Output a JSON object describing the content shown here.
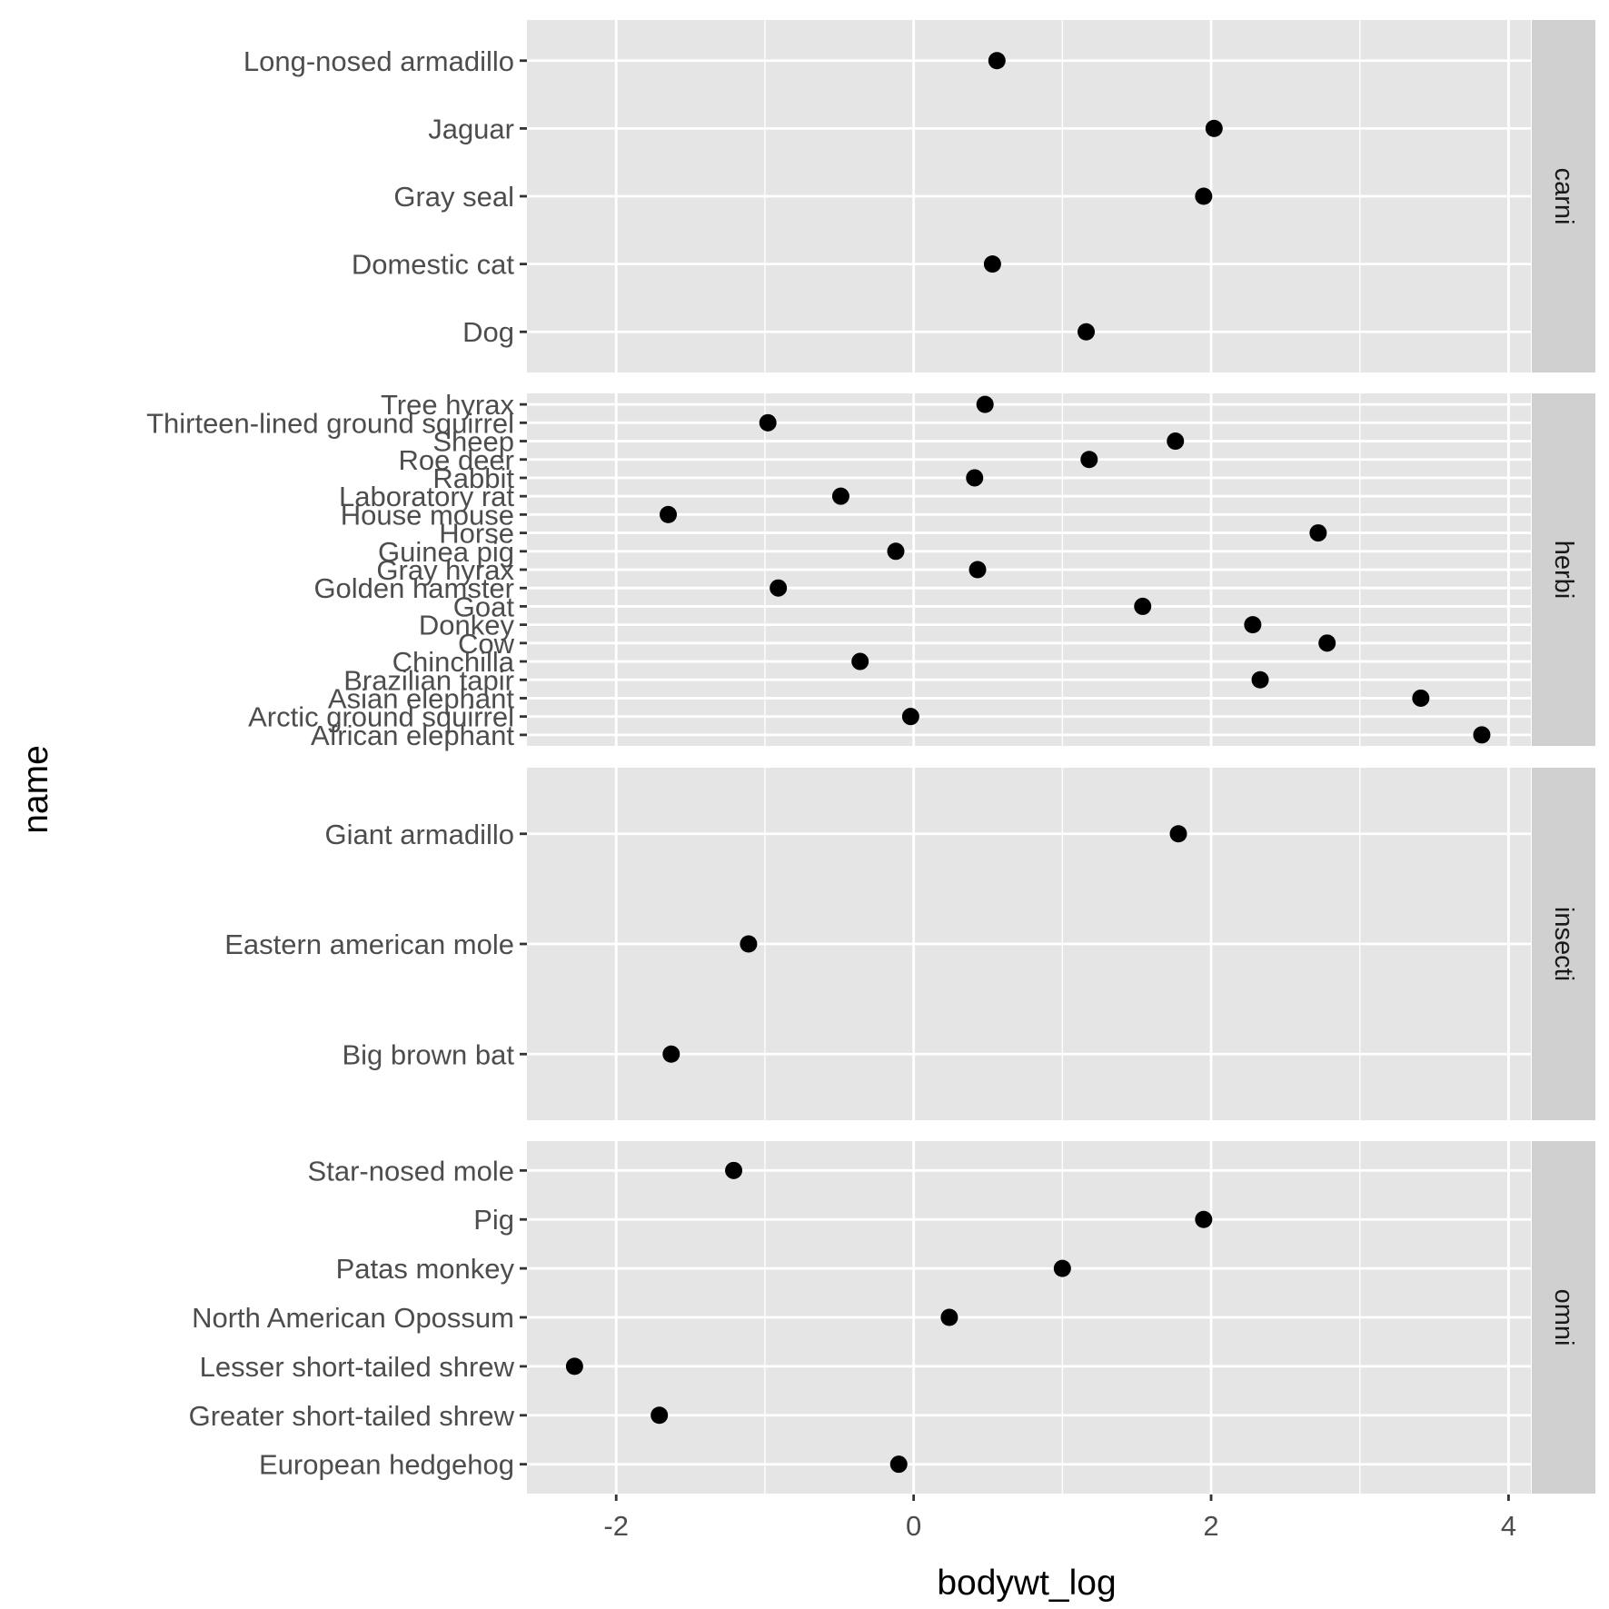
{
  "chart_data": {
    "type": "scatter",
    "facet": "rows",
    "x_label": "bodywt_log",
    "y_label": "name",
    "xlim": [
      -2.6,
      4.15
    ],
    "x_ticks": [
      -2,
      0,
      2,
      4
    ],
    "x_tick_labels": [
      "-2",
      "0",
      "2",
      "4"
    ],
    "grid": true,
    "legend": "none",
    "colors": {
      "panel_bg": "#e5e5e5",
      "strip_bg": "#d0d0d0",
      "grid": "#ffffff",
      "point": "#000000"
    },
    "panels": [
      {
        "strip": "carni",
        "categories": [
          "Dog",
          "Domestic cat",
          "Gray seal",
          "Jaguar",
          "Long-nosed armadillo"
        ],
        "values": [
          1.16,
          0.53,
          1.95,
          2.02,
          0.56
        ]
      },
      {
        "strip": "herbi",
        "categories": [
          "African elephant",
          "Arctic ground squirrel",
          "Asian elephant",
          "Brazilian tapir",
          "Chinchilla",
          "Cow",
          "Donkey",
          "Goat",
          "Golden hamster",
          "Gray hyrax",
          "Guinea pig",
          "Horse",
          "House mouse",
          "Laboratory rat",
          "Rabbit",
          "Roe deer",
          "Sheep",
          "Thirteen-lined ground squirrel",
          "Tree hyrax"
        ],
        "values": [
          3.82,
          -0.02,
          3.41,
          2.33,
          -0.36,
          2.78,
          2.28,
          1.54,
          -0.91,
          0.43,
          -0.12,
          2.72,
          -1.65,
          -0.49,
          0.41,
          1.18,
          1.76,
          -0.98,
          0.48
        ]
      },
      {
        "strip": "insecti",
        "categories": [
          "Big brown bat",
          "Eastern american mole",
          "Giant armadillo"
        ],
        "values": [
          -1.63,
          -1.11,
          1.78
        ]
      },
      {
        "strip": "omni",
        "categories": [
          "European hedgehog",
          "Greater short-tailed shrew",
          "Lesser short-tailed shrew",
          "North American Opossum",
          "Patas monkey",
          "Pig",
          "Star-nosed mole"
        ],
        "values": [
          -0.1,
          -1.71,
          -2.28,
          0.24,
          1.0,
          1.95,
          -1.21
        ]
      }
    ]
  }
}
